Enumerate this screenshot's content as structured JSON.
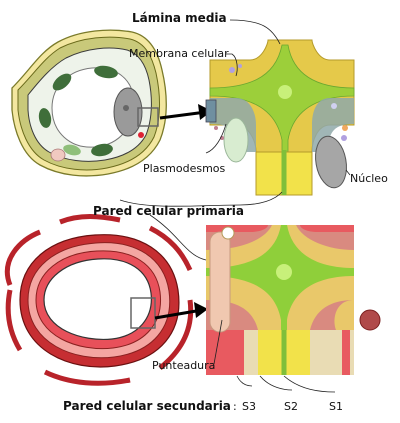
{
  "labels": {
    "middle_lamella": "Lámina media",
    "cell_membrane": "Membrana celular",
    "plasmodesmata": "Plasmodesmos",
    "nucleus": "Núcleo",
    "primary_wall": "Pared celular primaria",
    "pit": "Punteadura",
    "secondary_wall": "Pared celular secundaria",
    "colon": ":",
    "s3": "S3",
    "s2": "S2",
    "s1": "S1"
  }
}
